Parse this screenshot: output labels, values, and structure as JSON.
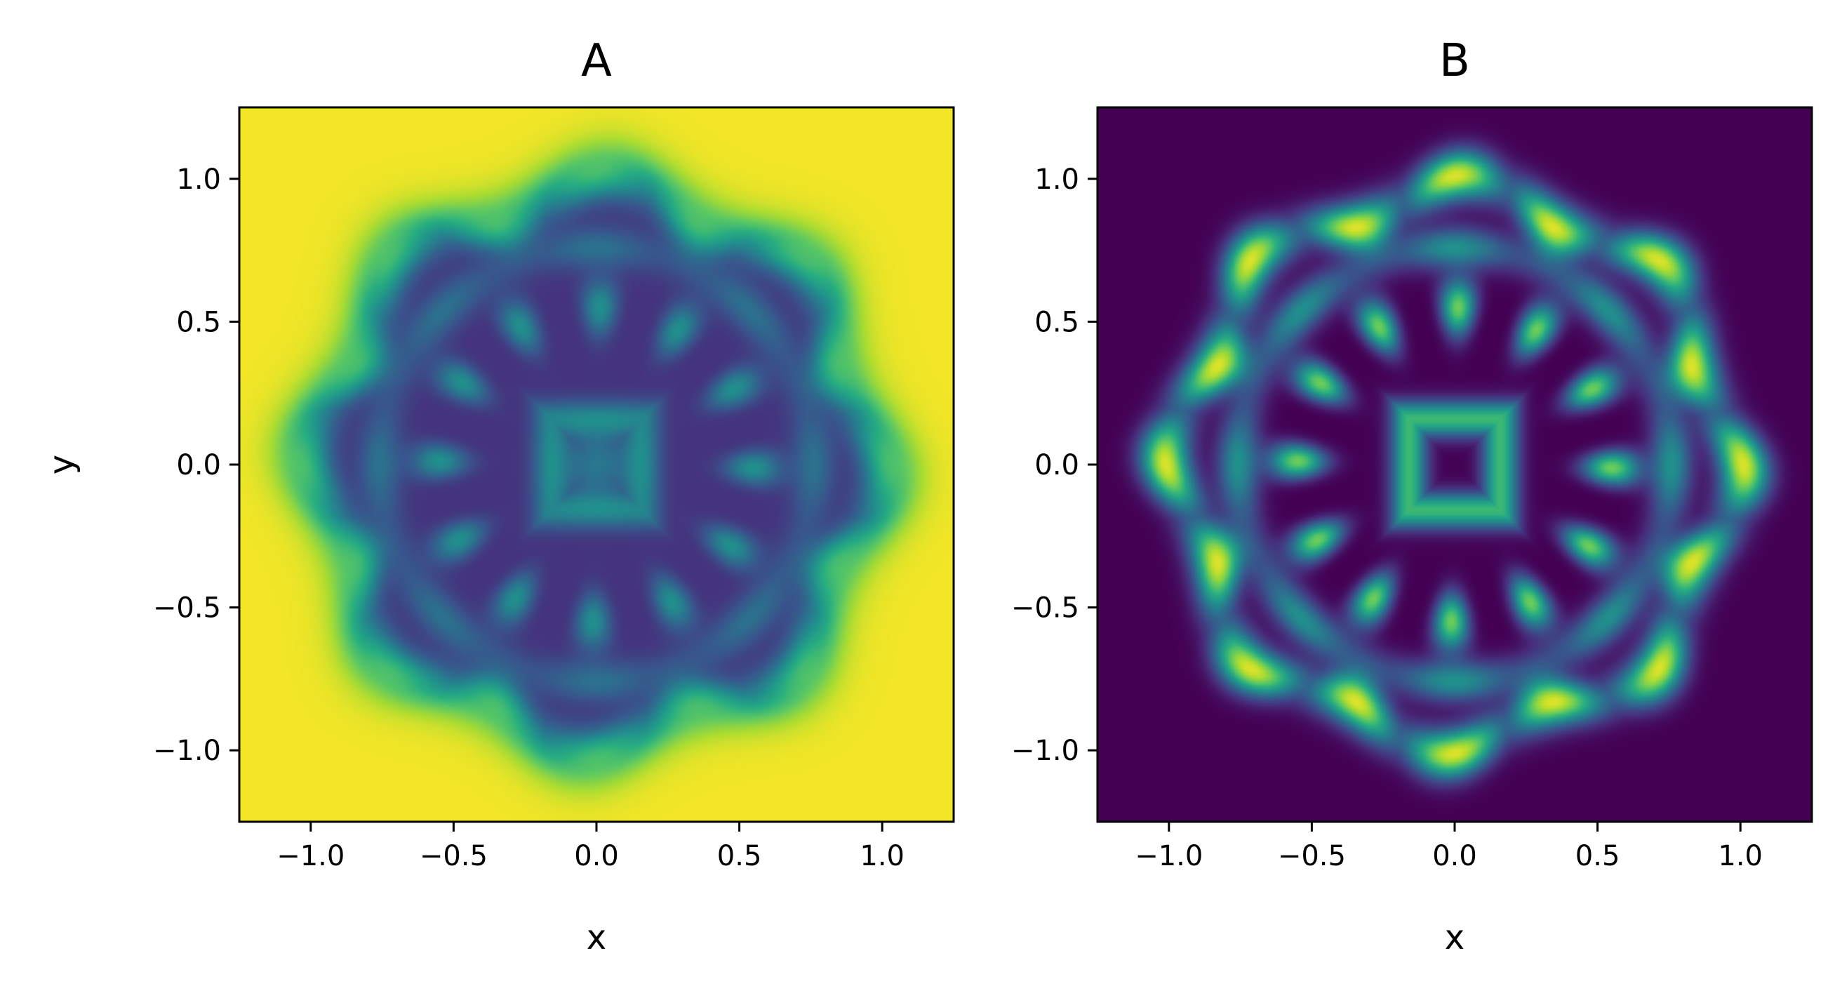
{
  "chart_data": [
    {
      "type": "heatmap",
      "title": "A",
      "xlabel": "x",
      "ylabel": "y",
      "xlim": [
        -1.25,
        1.25
      ],
      "ylim": [
        -1.25,
        1.25
      ],
      "xticks": [
        "−1.0",
        "−0.5",
        "0.0",
        "0.5",
        "1.0"
      ],
      "yticks": [
        "−1.0",
        "−0.5",
        "0.0",
        "0.5",
        "1.0"
      ],
      "xtick_values": [
        -1.0,
        -0.5,
        0.0,
        0.5,
        1.0
      ],
      "ytick_values": [
        -1.0,
        -0.5,
        0.0,
        0.5,
        1.0
      ],
      "colormap": "viridis",
      "background_color": "#efe51c",
      "grid": false
    },
    {
      "type": "heatmap",
      "title": "B",
      "xlabel": "x",
      "ylabel": "",
      "xlim": [
        -1.25,
        1.25
      ],
      "ylim": [
        -1.25,
        1.25
      ],
      "xticks": [
        "−1.0",
        "−0.5",
        "0.0",
        "0.5",
        "1.0"
      ],
      "yticks": [
        "−1.0",
        "−0.5",
        "0.0",
        "0.5",
        "1.0"
      ],
      "xtick_values": [
        -1.0,
        -0.5,
        0.0,
        0.5,
        1.0
      ],
      "ytick_values": [
        -1.0,
        -0.5,
        0.0,
        0.5,
        1.0
      ],
      "colormap": "viridis",
      "background_color": "#440154",
      "grid": false
    }
  ]
}
